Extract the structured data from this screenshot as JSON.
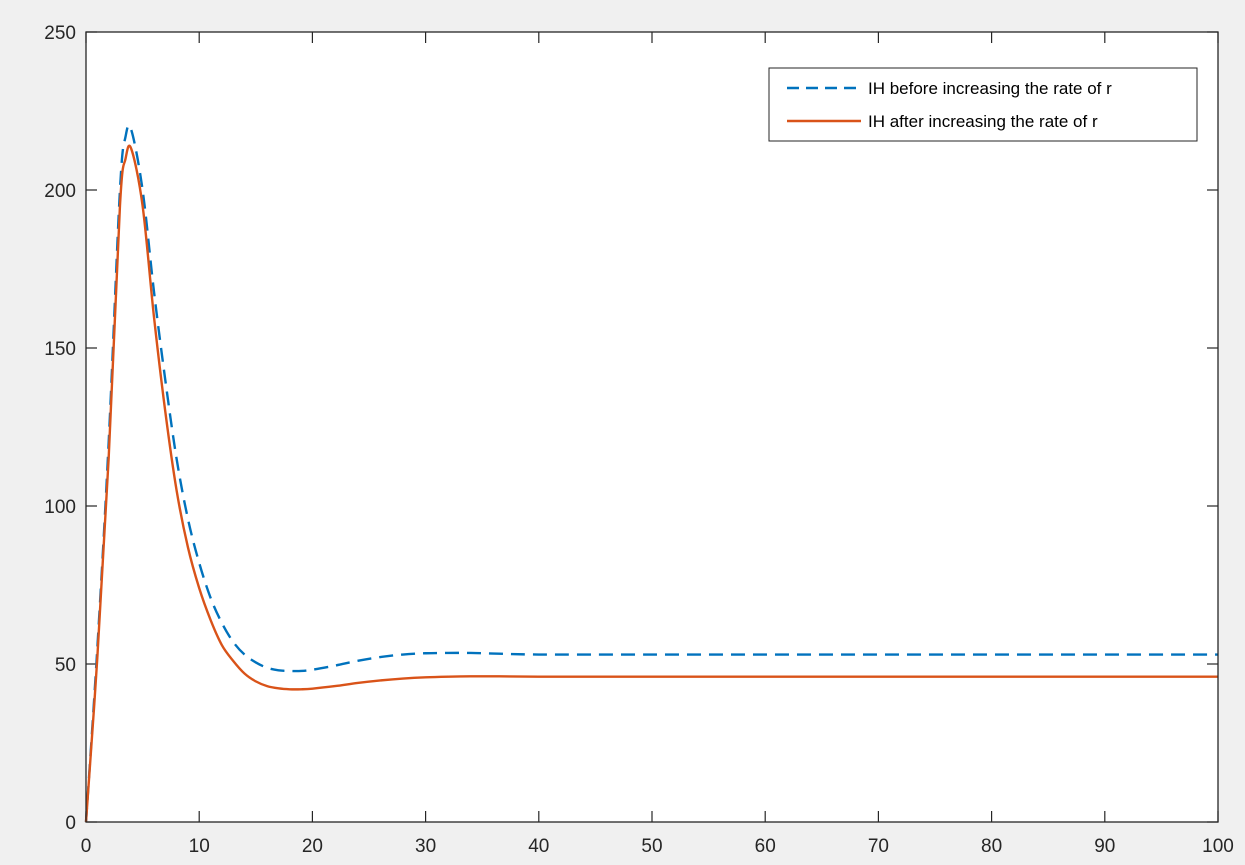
{
  "chart_data": {
    "type": "line",
    "title": "",
    "xlabel": "",
    "ylabel": "",
    "xlim": [
      0,
      100
    ],
    "ylim": [
      0,
      250
    ],
    "x_ticks": [
      0,
      10,
      20,
      30,
      40,
      50,
      60,
      70,
      80,
      90,
      100
    ],
    "y_ticks": [
      0,
      50,
      100,
      150,
      200,
      250
    ],
    "x_tick_labels": [
      "0",
      "10",
      "20",
      "30",
      "40",
      "50",
      "60",
      "70",
      "80",
      "90",
      "100"
    ],
    "y_tick_labels": [
      "0",
      "50",
      "100",
      "150",
      "200",
      "250"
    ],
    "grid": false,
    "legend_position": "top-right",
    "series": [
      {
        "name": "IH before increasing the rate of r",
        "color": "#0072bd",
        "style": "dashed",
        "x": [
          0,
          1,
          2,
          3,
          3.5,
          4,
          5,
          6,
          7,
          8,
          9,
          10,
          11,
          12,
          13,
          14,
          15,
          16,
          17,
          18,
          19,
          20,
          22,
          24,
          26,
          28,
          30,
          32,
          34,
          36,
          40,
          50,
          60,
          70,
          80,
          90,
          100
        ],
        "y": [
          0,
          55,
          120,
          200,
          217,
          219,
          200,
          168,
          140,
          115,
          96,
          82,
          71,
          63,
          57,
          53,
          50.5,
          48.8,
          48,
          47.8,
          47.8,
          48.2,
          49.5,
          51,
          52.2,
          53,
          53.4,
          53.5,
          53.5,
          53.3,
          53,
          53,
          53,
          53,
          53,
          53,
          53
        ]
      },
      {
        "name": "IH after increasing the rate of r",
        "color": "#d95319",
        "style": "solid",
        "x": [
          0,
          1,
          2,
          3,
          3.5,
          4,
          5,
          6,
          7,
          8,
          9,
          10,
          11,
          12,
          13,
          14,
          15,
          16,
          17,
          18,
          19,
          20,
          22,
          24,
          26,
          28,
          30,
          32,
          34,
          36,
          40,
          50,
          60,
          70,
          80,
          90,
          100
        ],
        "y": [
          0,
          52,
          115,
          195,
          210,
          213,
          195,
          160,
          130,
          105,
          87,
          74,
          64,
          56,
          51,
          47,
          44.5,
          43,
          42.3,
          42,
          42,
          42.2,
          43,
          44,
          44.8,
          45.4,
          45.8,
          46,
          46.1,
          46.1,
          46,
          46,
          46,
          46,
          46,
          46,
          46
        ]
      }
    ]
  }
}
